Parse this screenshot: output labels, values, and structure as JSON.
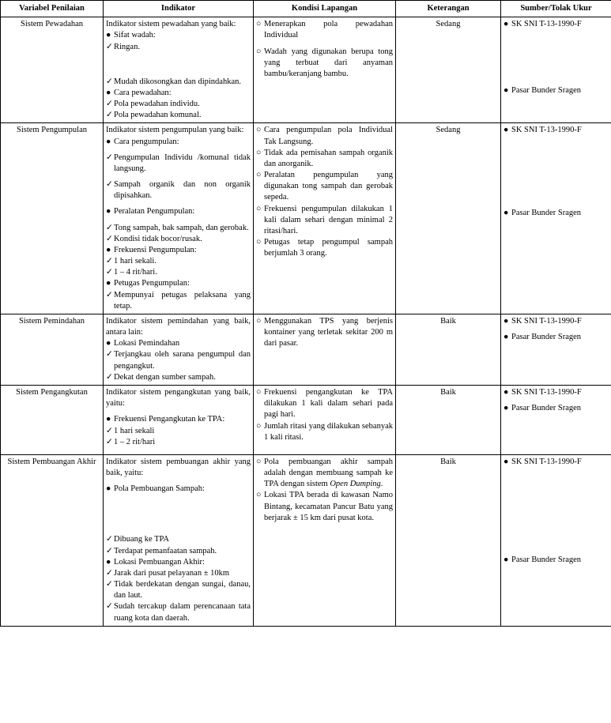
{
  "headers": {
    "c1": "Variabel Penilaian",
    "c2": "Indikator",
    "c3": "Kondisi Lapangan",
    "c4": "Keterangan",
    "c5": "Sumber/Tolak Ukur"
  },
  "src": {
    "sk": "SK SNI T-13-1990-F",
    "pasar": "Pasar Bunder Sragen"
  },
  "ket": {
    "sedang": "Sedang",
    "baik": "Baik"
  },
  "rows": {
    "r1": {
      "var": "Sistem Pewadahan",
      "ind_intro": "Indikator sistem pewadahan yang baik:",
      "ind_b1": "Sifat wadah:",
      "ind_c1": "Ringan.",
      "ind_c2": "Mudah dikosongkan dan dipindahkan.",
      "ind_b2": "Cara pewadahan:",
      "ind_c3": "Pola pewadahan individu.",
      "ind_c4": "Pola pewadahan komunal.",
      "kon_o1": "Menerapkan pola pewadahan Individual",
      "kon_o2": "Wadah yang digunakan berupa tong yang terbuat dari anyaman bambu/keranjang bambu."
    },
    "r2": {
      "var": "Sistem Pengumpulan",
      "ind_intro": "Indikator sistem pengumpulan yang baik:",
      "ind_b1": "Cara pengumpulan:",
      "ind_c1": "Pengumpulan Individu /komunal tidak langsung.",
      "ind_c2": "Sampah organik dan non organik dipisahkan.",
      "ind_b2": "Peralatan Pengumpulan:",
      "ind_c3": "Tong sampah, bak sampah, dan gerobak.",
      "ind_c4": "Kondisi tidak bocor/rusak.",
      "ind_b3": "Frekuensi Pengumpulan:",
      "ind_c5": "1 hari sekali.",
      "ind_c6": "1 – 4 rit/hari.",
      "ind_b4": "Petugas Pengumpulan:",
      "ind_c7": "Mempunyai petugas pelaksana yang tetap.",
      "kon_o1": "Cara pengumpulan pola Individual Tak Langsung.",
      "kon_o2": "Tidak ada pemisahan sampah organik dan anorganik.",
      "kon_o3": "Peralatan pengumpulan yang digunakan tong sampah dan gerobak sepeda.",
      "kon_o4": "Frekuensi pengumpulan dilakukan 1 kali dalam sehari dengan minimal 2 ritasi/hari.",
      "kon_o5": "Petugas tetap pengumpul sampah berjumlah 3 orang."
    },
    "r3": {
      "var": "Sistem Pemindahan",
      "ind_intro": "Indikator sistem pemindahan yang baik, antara lain:",
      "ind_b1": "Lokasi Pemindahan",
      "ind_c1": "Terjangkau oleh sarana pengumpul dan pengangkut.",
      "ind_c2": "Dekat dengan sumber sampah.",
      "kon_o1": "Menggunakan TPS yang berjenis kontainer yang terletak sekitar 200 m dari pasar."
    },
    "r4": {
      "var": "Sistem Pengangkutan",
      "ind_intro": "Indikator sistem pengangkutan yang baik, yaitu:",
      "ind_b1": "Frekuensi Pengangkutan ke TPA:",
      "ind_c1": "1 hari sekali",
      "ind_c2": "1 – 2 rit/hari",
      "kon_o1": "Frekuensi pengangkutan ke TPA dilakukan 1 kali dalam sehari pada pagi hari.",
      "kon_o2": "Jumlah ritasi yang dilakukan sebanyak 1 kali ritasi."
    },
    "r5": {
      "var": "Sistem Pembuangan Akhir",
      "ind_intro": "Indikator sistem pembuangan akhir yang baik, yaitu:",
      "ind_b1": "Pola Pembuangan Sampah:",
      "ind_c1": "Dibuang ke TPA",
      "ind_c2": "Terdapat pemanfaatan sampah.",
      "ind_b2": "Lokasi Pembuangan Akhir:",
      "ind_c3": "Jarak dari pusat pelayanan ± 10km",
      "ind_c4": "Tidak berdekatan dengan sungai, danau, dan laut.",
      "ind_c5": "Sudah tercakup dalam perencanaan tata ruang kota dan daerah.",
      "kon_o1_a": "Pola pembuangan akhir sampah adalah dengan membuang sampah ke TPA dengan sistem ",
      "kon_o1_b": "Open Dumping",
      "kon_o1_c": ".",
      "kon_o2": "Lokasi TPA berada di kawasan Namo Bintang, kecamatan Pancur Batu yang berjarak ± 15 km dari pusat kota."
    }
  }
}
